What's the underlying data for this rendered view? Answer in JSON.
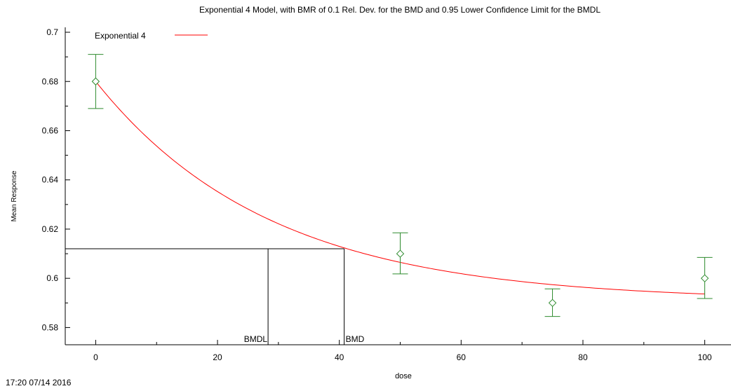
{
  "chart_data": {
    "type": "line",
    "title": "Exponential 4 Model, with BMR of 0.1 Rel. Dev. for the BMD and 0.95 Lower Confidence Limit for the BMDL",
    "xlabel": "dose",
    "ylabel": "Mean Response",
    "xlim": [
      -5,
      105
    ],
    "ylim": [
      0.573,
      0.702
    ],
    "x_ticks": [
      0,
      20,
      40,
      60,
      80,
      100
    ],
    "y_ticks": [
      0.58,
      0.6,
      0.62,
      0.64,
      0.66,
      0.68,
      0.7
    ],
    "y_tick_labels": [
      "0.58",
      "0.6",
      "0.62",
      "0.64",
      "0.66",
      "0.68",
      "0.7"
    ],
    "legend": {
      "label": "Exponential 4",
      "position": "top-left"
    },
    "model_curve": {
      "name": "Exponential 4",
      "color": "#ff0000",
      "form": "a*(c-(c-1)*exp(-b*x))",
      "a": 0.68,
      "b": 0.0349,
      "c": 0.869,
      "x_range": [
        0,
        100
      ]
    },
    "observed": {
      "color": "#2e8b2e",
      "points": [
        {
          "x": 0,
          "y": 0.68,
          "lower": 0.669,
          "upper": 0.691
        },
        {
          "x": 50,
          "y": 0.61,
          "lower": 0.6018,
          "upper": 0.6185
        },
        {
          "x": 75,
          "y": 0.59,
          "lower": 0.5845,
          "upper": 0.5957
        },
        {
          "x": 100,
          "y": 0.6,
          "lower": 0.5918,
          "upper": 0.6085
        }
      ]
    },
    "bmd_lines": {
      "bmr_response": 0.612,
      "bmdl": 28.3,
      "bmd": 40.8,
      "bmdl_label": "BMDL",
      "bmd_label": "BMD"
    }
  },
  "footer": {
    "timestamp": "17:20 07/14 2016"
  }
}
